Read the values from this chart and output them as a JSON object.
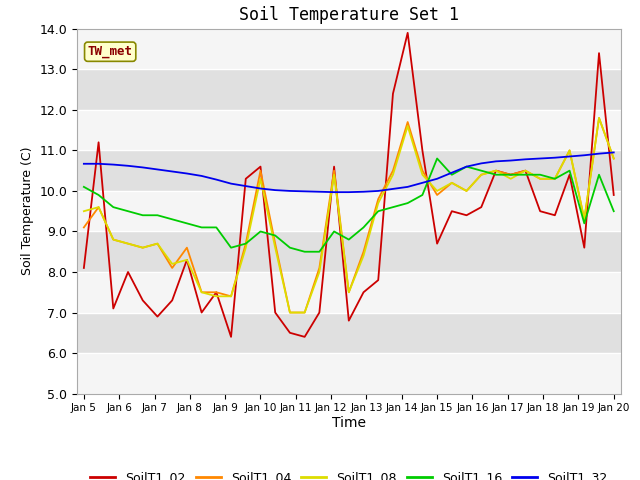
{
  "title": "Soil Temperature Set 1",
  "xlabel": "Time",
  "ylabel": "Soil Temperature (C)",
  "ylim": [
    5.0,
    14.0
  ],
  "yticks": [
    5.0,
    6.0,
    7.0,
    8.0,
    9.0,
    10.0,
    11.0,
    12.0,
    13.0,
    14.0
  ],
  "x_labels": [
    "Jan 5",
    "Jan 6",
    "Jan 7",
    "Jan 8",
    "Jan 9",
    "Jan 10",
    "Jan 11",
    "Jan 12",
    "Jan 13",
    "Jan 14",
    "Jan 15",
    "Jan 16",
    "Jan 17",
    "Jan 18",
    "Jan 19",
    "Jan 20"
  ],
  "tw_met_label": "TW_met",
  "series": {
    "SoilT1_02": {
      "color": "#cc0000",
      "data": [
        8.1,
        11.2,
        7.1,
        8.0,
        7.3,
        6.9,
        7.3,
        8.3,
        7.0,
        7.5,
        6.4,
        10.3,
        10.6,
        7.0,
        6.5,
        6.4,
        7.0,
        10.6,
        6.8,
        7.5,
        7.8,
        12.4,
        13.9,
        11.0,
        8.7,
        9.5,
        9.4,
        9.6,
        10.5,
        10.4,
        10.5,
        9.5,
        9.4,
        10.4,
        8.6,
        13.4,
        9.9
      ]
    },
    "SoilT1_04": {
      "color": "#ff8800",
      "data": [
        9.1,
        9.6,
        8.8,
        8.7,
        8.6,
        8.7,
        8.1,
        8.6,
        7.5,
        7.5,
        7.4,
        8.7,
        10.5,
        8.7,
        7.0,
        7.0,
        8.1,
        10.5,
        7.5,
        8.5,
        9.8,
        10.5,
        11.7,
        10.5,
        9.9,
        10.2,
        10.0,
        10.4,
        10.5,
        10.4,
        10.5,
        10.3,
        10.3,
        11.0,
        9.3,
        11.8,
        10.8
      ]
    },
    "SoilT1_08": {
      "color": "#dddd00",
      "data": [
        9.5,
        9.6,
        8.8,
        8.7,
        8.6,
        8.7,
        8.2,
        8.3,
        7.5,
        7.4,
        7.4,
        8.6,
        10.3,
        8.6,
        7.0,
        7.0,
        8.0,
        10.4,
        7.5,
        8.4,
        9.7,
        10.4,
        11.6,
        10.4,
        10.0,
        10.2,
        10.0,
        10.4,
        10.5,
        10.3,
        10.5,
        10.3,
        10.3,
        11.0,
        9.3,
        11.8,
        10.8
      ]
    },
    "SoilT1_16": {
      "color": "#00cc00",
      "data": [
        10.1,
        9.9,
        9.6,
        9.5,
        9.4,
        9.4,
        9.3,
        9.2,
        9.1,
        9.1,
        8.6,
        8.7,
        9.0,
        8.9,
        8.6,
        8.5,
        8.5,
        9.0,
        8.8,
        9.1,
        9.5,
        9.6,
        9.7,
        9.9,
        10.8,
        10.4,
        10.6,
        10.5,
        10.4,
        10.4,
        10.4,
        10.4,
        10.3,
        10.5,
        9.2,
        10.4,
        9.5
      ]
    },
    "SoilT1_32": {
      "color": "#0000ee",
      "data": [
        10.67,
        10.67,
        10.65,
        10.62,
        10.58,
        10.53,
        10.48,
        10.43,
        10.37,
        10.28,
        10.18,
        10.12,
        10.06,
        10.02,
        10.0,
        9.99,
        9.98,
        9.97,
        9.97,
        9.98,
        10.0,
        10.05,
        10.1,
        10.2,
        10.3,
        10.45,
        10.6,
        10.68,
        10.73,
        10.75,
        10.78,
        10.8,
        10.82,
        10.85,
        10.88,
        10.92,
        10.95
      ]
    }
  },
  "legend_order": [
    "SoilT1_02",
    "SoilT1_04",
    "SoilT1_08",
    "SoilT1_16",
    "SoilT1_32"
  ],
  "band_colors_dark": "#e0e0e0",
  "band_colors_light": "#f5f5f5",
  "figure_bg": "#ffffff",
  "axes_bg": "#ffffff"
}
